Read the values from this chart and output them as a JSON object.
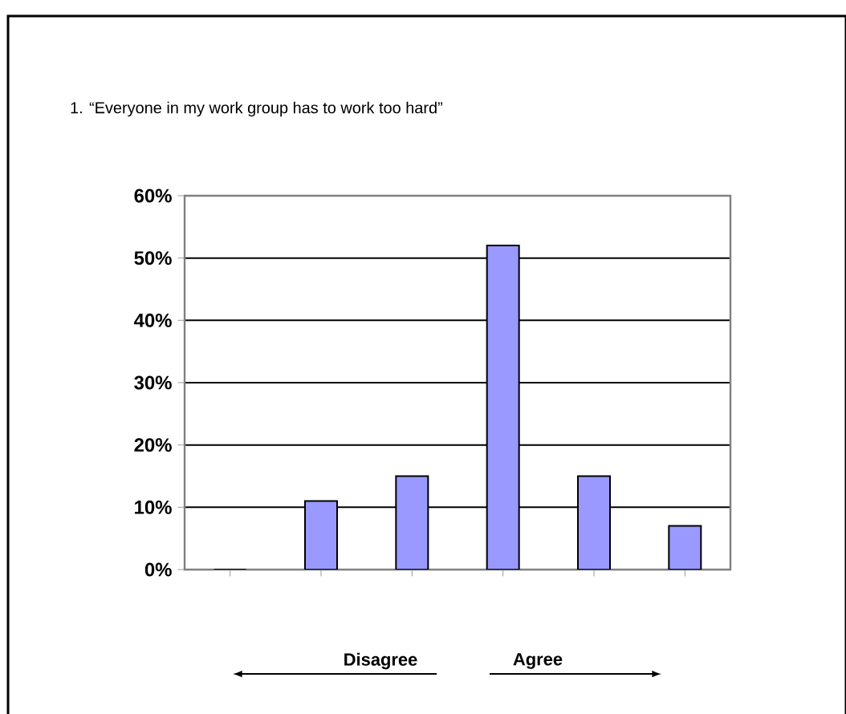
{
  "chart_data": {
    "type": "bar",
    "title": "1. “Everyone in my work group has to work too hard”",
    "categories": [
      null,
      null,
      null,
      null,
      null,
      null
    ],
    "values": [
      0,
      11,
      15,
      52,
      15,
      7
    ],
    "color": "#9999ff",
    "ylim": [
      0,
      60
    ],
    "yticks": [
      {
        "value": 0,
        "label": "0%"
      },
      {
        "value": 10,
        "label": "10%"
      },
      {
        "value": 20,
        "label": "20%"
      },
      {
        "value": 30,
        "label": "30%"
      },
      {
        "value": 40,
        "label": "40%"
      },
      {
        "value": 50,
        "label": "50%"
      },
      {
        "value": 60,
        "label": "60%"
      }
    ],
    "grid": "y",
    "tick_labels": "y",
    "annotations": [
      "Disagree",
      "Agree"
    ]
  }
}
